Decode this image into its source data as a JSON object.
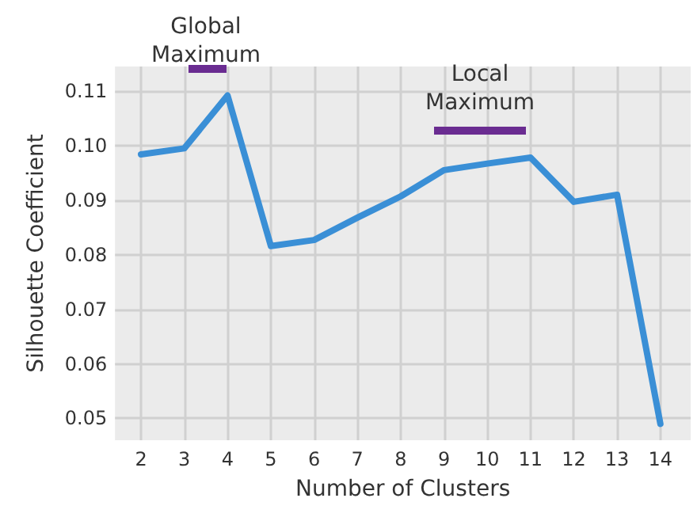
{
  "chart_data": {
    "type": "line",
    "xlabel": "Number of Clusters",
    "ylabel": "Silhouette Coefficient",
    "x": [
      2,
      3,
      4,
      5,
      6,
      7,
      8,
      9,
      10,
      11,
      12,
      13,
      14
    ],
    "series": [
      {
        "color": "#3a8fd6",
        "values": [
          0.0984,
          0.0995,
          0.1092,
          0.0816,
          0.0827,
          0.0868,
          0.0907,
          0.0955,
          0.0967,
          0.0978,
          0.0897,
          0.091,
          0.049
        ]
      }
    ],
    "xlim": [
      1.4,
      14.7
    ],
    "xticks": [
      2,
      3,
      4,
      5,
      6,
      7,
      8,
      9,
      10,
      11,
      12,
      13,
      14
    ],
    "ylim": [
      0.046,
      0.1145
    ],
    "yticks": [
      0.05,
      0.06,
      0.07,
      0.08,
      0.09,
      {
        "value": 0.1,
        "label": "0.10"
      },
      0.11
    ],
    "annotations": [
      "Global Maximum",
      "Local Maximum"
    ],
    "grid": true,
    "marker": "none",
    "line_style": "solid"
  }
}
